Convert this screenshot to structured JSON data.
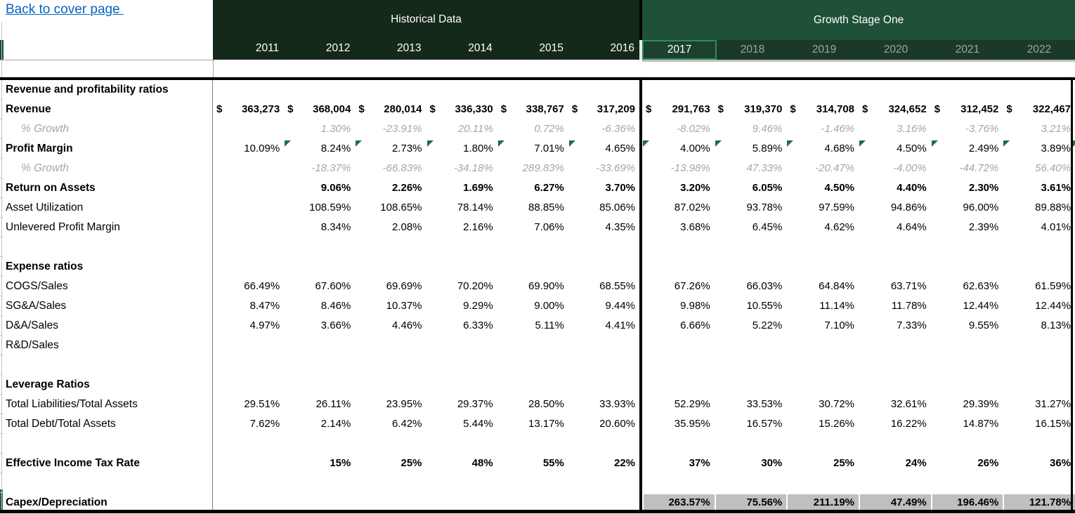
{
  "nav": {
    "back_link": "Back to cover page "
  },
  "colors": {
    "hist_banner": "#14291A",
    "growth_banner": "#1F5138",
    "growth_years_bg": "#1B3928",
    "selected_year_border": "#2F8A56",
    "year_muted_text": "#9EA69E",
    "muted_italic": "#A6A6A6",
    "capex_band": "#BFBFBF",
    "flag_green": "#1E7145",
    "link_blue": "#0563C1"
  },
  "table": {
    "sections": [
      {
        "title": "Historical Data",
        "years": [
          "2011",
          "2012",
          "2013",
          "2014",
          "2015",
          "2016"
        ]
      },
      {
        "title": "Growth Stage One",
        "years": [
          "2017",
          "2018",
          "2019",
          "2020",
          "2021",
          "2022"
        ],
        "selected_year": "2017"
      }
    ],
    "currency_symbol": "$",
    "rows": [
      {
        "label": "Revenue and profitability ratios",
        "bold_label": true,
        "hist": [
          "",
          "",
          "",
          "",
          "",
          ""
        ],
        "growth": [
          "",
          "",
          "",
          "",
          "",
          ""
        ]
      },
      {
        "label": "Revenue",
        "bold_label": true,
        "bold_values": true,
        "money": true,
        "hist": [
          "363,273",
          "368,004",
          "280,014",
          "336,330",
          "338,767",
          "317,209"
        ],
        "growth": [
          "291,763",
          "319,370",
          "314,708",
          "324,652",
          "312,452",
          "322,467"
        ]
      },
      {
        "label": "% Growth",
        "indent": true,
        "italic": true,
        "hist": [
          "",
          "1.30%",
          "-23.91%",
          "20.11%",
          "0.72%",
          "-6.36%"
        ],
        "growth": [
          "-8.02%",
          "9.46%",
          "-1.46%",
          "3.16%",
          "-3.76%",
          "3.21%"
        ]
      },
      {
        "label": "Profit Margin",
        "bold_label": true,
        "flags_hist": [
          false,
          true,
          true,
          true,
          true,
          true
        ],
        "flags_growth": [
          true,
          true,
          true,
          true,
          true,
          true
        ],
        "hist": [
          "10.09%",
          "8.24%",
          "2.73%",
          "1.80%",
          "7.01%",
          "4.65%"
        ],
        "growth": [
          "4.00%",
          "5.89%",
          "4.68%",
          "4.50%",
          "2.49%",
          "3.89%"
        ]
      },
      {
        "label": "% Growth",
        "indent": true,
        "italic": true,
        "hist": [
          "",
          "-18.37%",
          "-66.83%",
          "-34.18%",
          "289.83%",
          "-33.69%"
        ],
        "growth": [
          "-13.98%",
          "47.33%",
          "-20.47%",
          "-4.00%",
          "-44.72%",
          "56.40%"
        ]
      },
      {
        "label": "Return on Assets",
        "bold_label": true,
        "bold_values": true,
        "hist": [
          "",
          "9.06%",
          "2.26%",
          "1.69%",
          "6.27%",
          "3.70%"
        ],
        "growth": [
          "3.20%",
          "6.05%",
          "4.50%",
          "4.40%",
          "2.30%",
          "3.61%"
        ]
      },
      {
        "label": "Asset Utilization",
        "hist": [
          "",
          "108.59%",
          "108.65%",
          "78.14%",
          "88.85%",
          "85.06%"
        ],
        "growth": [
          "87.02%",
          "93.78%",
          "97.59%",
          "94.86%",
          "96.00%",
          "89.88%"
        ]
      },
      {
        "label": "Unlevered Profit Margin",
        "hist": [
          "",
          "8.34%",
          "2.08%",
          "2.16%",
          "7.06%",
          "4.35%"
        ],
        "growth": [
          "3.68%",
          "6.45%",
          "4.62%",
          "4.64%",
          "2.39%",
          "4.01%"
        ]
      },
      {
        "label": "",
        "hist": [
          "",
          "",
          "",
          "",
          "",
          ""
        ],
        "growth": [
          "",
          "",
          "",
          "",
          "",
          ""
        ]
      },
      {
        "label": "Expense ratios",
        "bold_label": true,
        "hist": [
          "",
          "",
          "",
          "",
          "",
          ""
        ],
        "growth": [
          "",
          "",
          "",
          "",
          "",
          ""
        ]
      },
      {
        "label": "COGS/Sales",
        "hist": [
          "66.49%",
          "67.60%",
          "69.69%",
          "70.20%",
          "69.90%",
          "68.55%"
        ],
        "growth": [
          "67.26%",
          "66.03%",
          "64.84%",
          "63.71%",
          "62.63%",
          "61.59%"
        ]
      },
      {
        "label": "SG&A/Sales",
        "hist": [
          "8.47%",
          "8.46%",
          "10.37%",
          "9.29%",
          "9.00%",
          "9.44%"
        ],
        "growth": [
          "9.98%",
          "10.55%",
          "11.14%",
          "11.78%",
          "12.44%",
          "12.44%"
        ]
      },
      {
        "label": "D&A/Sales",
        "hist": [
          "4.97%",
          "3.66%",
          "4.46%",
          "6.33%",
          "5.11%",
          "4.41%"
        ],
        "growth": [
          "6.66%",
          "5.22%",
          "7.10%",
          "7.33%",
          "9.55%",
          "8.13%"
        ]
      },
      {
        "label": "R&D/Sales",
        "hist": [
          "",
          "",
          "",
          "",
          "",
          ""
        ],
        "growth": [
          "",
          "",
          "",
          "",
          "",
          ""
        ]
      },
      {
        "label": "",
        "hist": [
          "",
          "",
          "",
          "",
          "",
          ""
        ],
        "growth": [
          "",
          "",
          "",
          "",
          "",
          ""
        ]
      },
      {
        "label": "Leverage Ratios",
        "bold_label": true,
        "hist": [
          "",
          "",
          "",
          "",
          "",
          ""
        ],
        "growth": [
          "",
          "",
          "",
          "",
          "",
          ""
        ]
      },
      {
        "label": "Total Liabilities/Total Assets",
        "hist": [
          "29.51%",
          "26.11%",
          "23.95%",
          "29.37%",
          "28.50%",
          "33.93%"
        ],
        "growth": [
          "52.29%",
          "33.53%",
          "30.72%",
          "32.61%",
          "29.39%",
          "31.27%"
        ]
      },
      {
        "label": "Total Debt/Total Assets",
        "hist": [
          "7.62%",
          "2.14%",
          "6.42%",
          "5.44%",
          "13.17%",
          "20.60%"
        ],
        "growth": [
          "35.95%",
          "16.57%",
          "15.26%",
          "16.22%",
          "14.87%",
          "16.15%"
        ]
      },
      {
        "label": "",
        "hist": [
          "",
          "",
          "",
          "",
          "",
          ""
        ],
        "growth": [
          "",
          "",
          "",
          "",
          "",
          ""
        ]
      },
      {
        "label": "Effective Income Tax Rate",
        "bold_label": true,
        "bold_values": true,
        "hist": [
          "",
          "15%",
          "25%",
          "48%",
          "55%",
          "22%"
        ],
        "growth": [
          "37%",
          "30%",
          "25%",
          "24%",
          "26%",
          "36%"
        ]
      },
      {
        "label": "",
        "hist": [
          "",
          "",
          "",
          "",
          "",
          ""
        ],
        "growth": [
          "",
          "",
          "",
          "",
          "",
          ""
        ]
      },
      {
        "label": "Capex/Depreciation",
        "bold_label": true,
        "bold_values": true,
        "gray": true,
        "hist": [
          "",
          "",
          "",
          "",
          "",
          ""
        ],
        "growth": [
          "263.57%",
          "75.56%",
          "211.19%",
          "47.49%",
          "196.46%",
          "121.78%"
        ]
      }
    ]
  }
}
